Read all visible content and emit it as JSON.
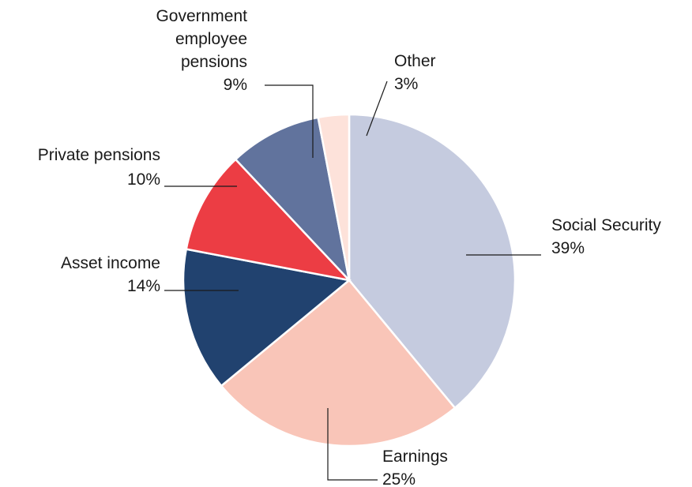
{
  "chart_data": {
    "type": "pie",
    "start_angle_deg": 0,
    "direction": "clockwise",
    "slices": [
      {
        "label": "Social Security",
        "percent_label": "39%",
        "value": 39,
        "color": "#c5cbdf"
      },
      {
        "label": "Earnings",
        "percent_label": "25%",
        "value": 25,
        "color": "#f9c5b8"
      },
      {
        "label": "Asset income",
        "percent_label": "14%",
        "value": 14,
        "color": "#21426f"
      },
      {
        "label": "Private pensions",
        "percent_label": "10%",
        "value": 10,
        "color": "#ec3d44"
      },
      {
        "label": "Government employee pensions",
        "percent_label": "9%",
        "value": 9,
        "color": "#61739d"
      },
      {
        "label": "Other",
        "percent_label": "3%",
        "value": 3,
        "color": "#fde2da"
      }
    ]
  },
  "labels": {
    "social_security": {
      "name": "Social Security",
      "pct": "39%"
    },
    "earnings": {
      "name": "Earnings",
      "pct": "25%"
    },
    "asset_income": {
      "name": "Asset income",
      "pct": "14%"
    },
    "private_pensions": {
      "name": "Private pensions",
      "pct": "10%"
    },
    "gov_pensions": {
      "line1": "Government",
      "line2": "employee",
      "line3": "pensions",
      "pct": "9%"
    },
    "other": {
      "name": "Other",
      "pct": "3%"
    }
  }
}
